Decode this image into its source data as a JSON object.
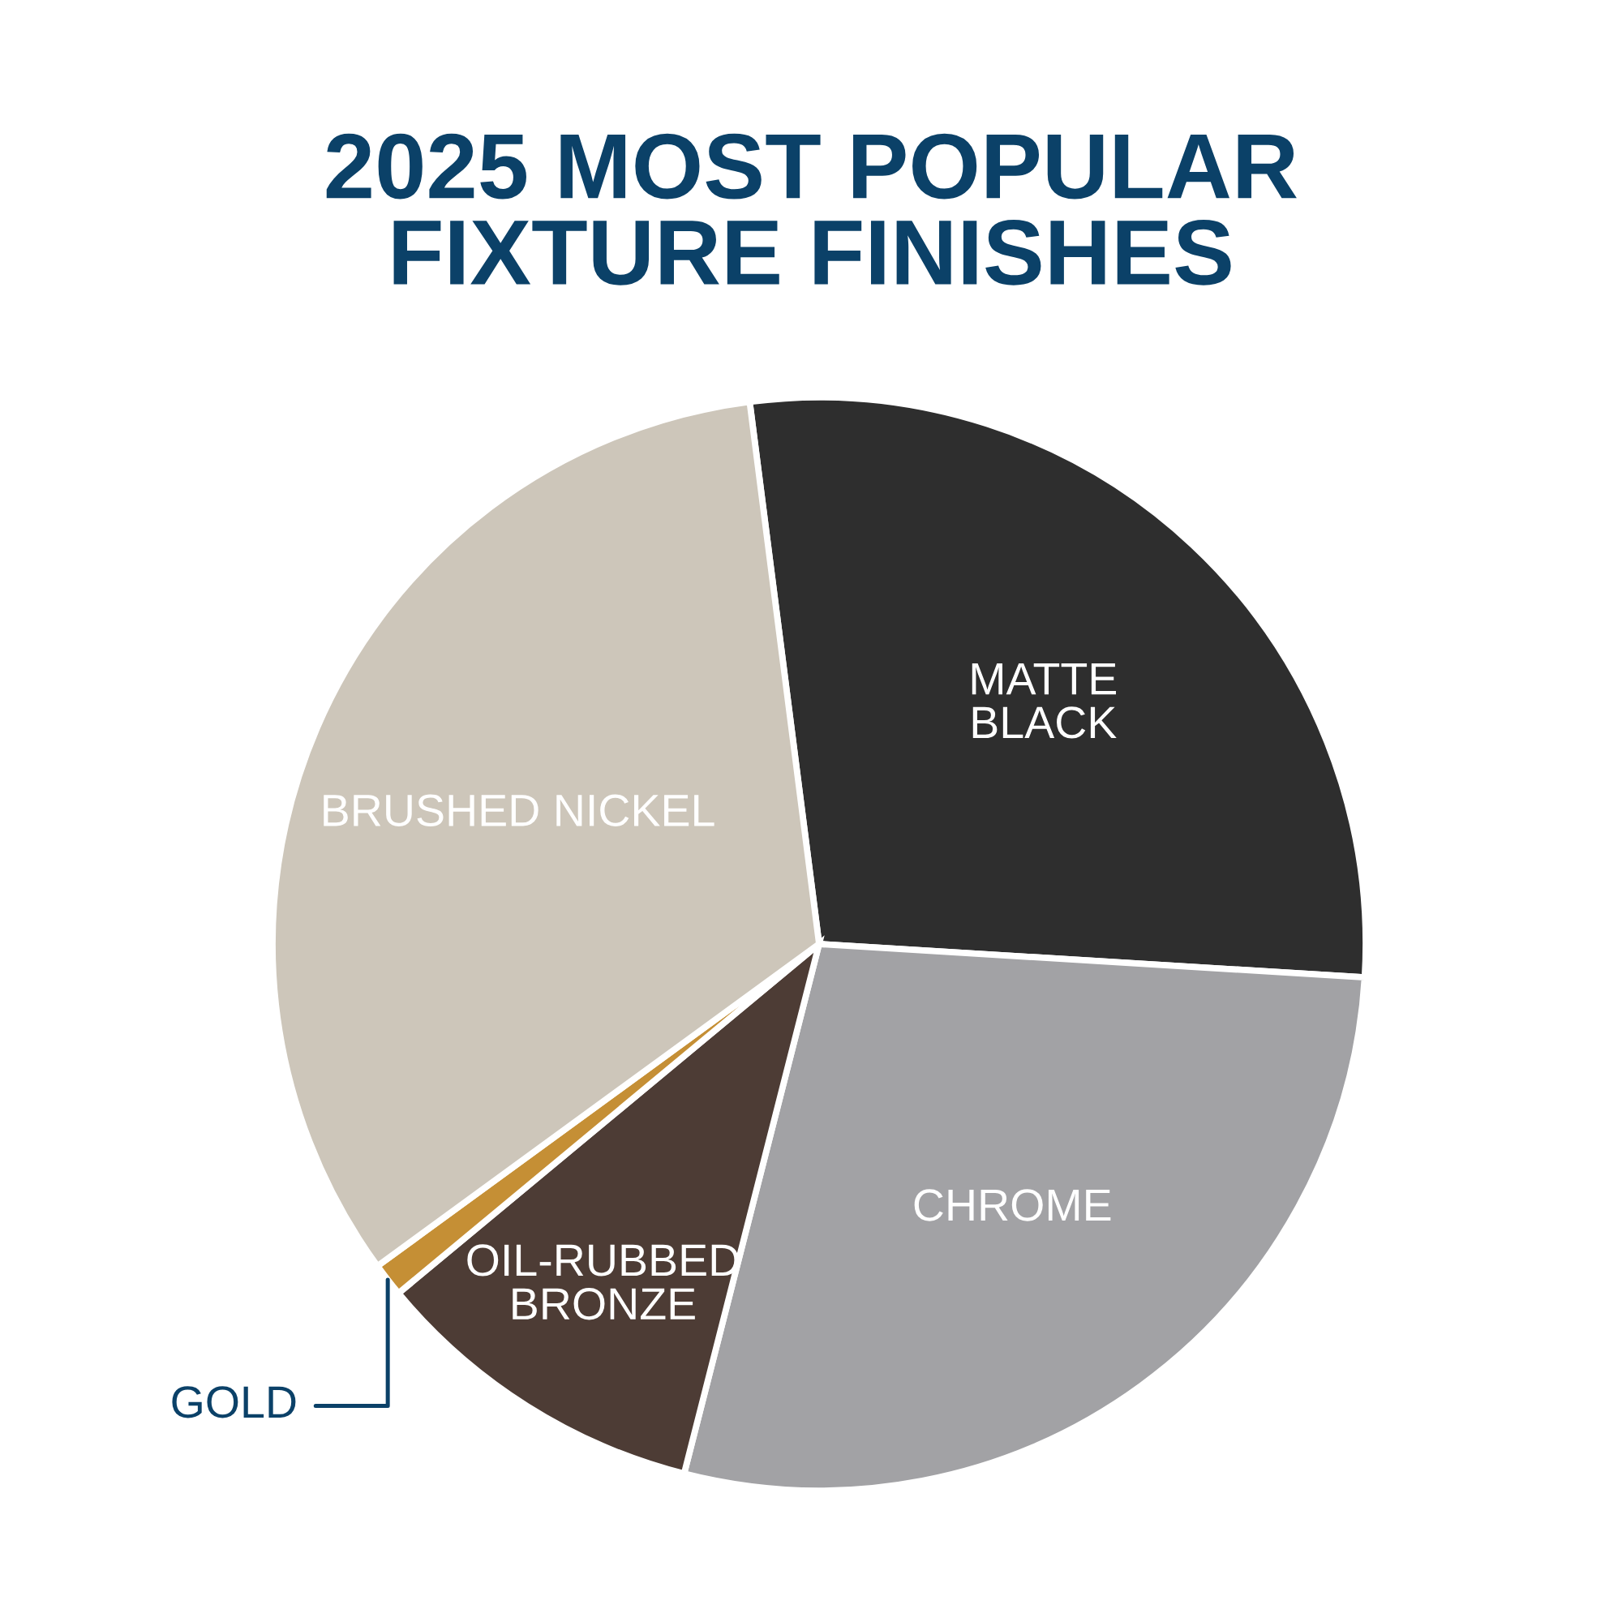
{
  "chart_data": {
    "type": "pie",
    "title": "2025 MOST POPULAR\nFIXTURE FINISHES",
    "categories": [
      "MATTE\nBLACK",
      "CHROME",
      "OIL-RUBBED\nBRONZE",
      "GOLD",
      "BRUSHED NICKEL"
    ],
    "values": [
      28,
      28,
      10,
      1,
      33
    ],
    "colors": [
      "#2e2e2e",
      "#a2a2a5",
      "#4d3c35",
      "#c58f35",
      "#cdc6ba"
    ]
  }
}
